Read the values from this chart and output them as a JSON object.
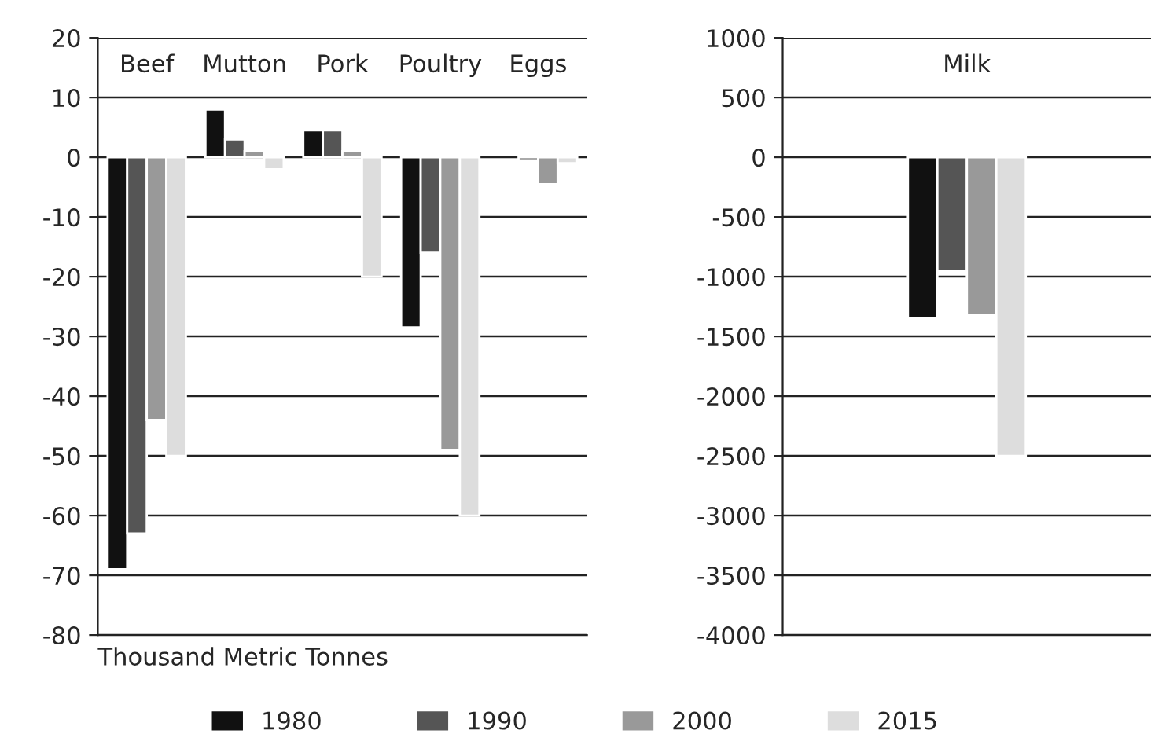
{
  "chart_data": [
    {
      "type": "bar",
      "categories": [
        "Beef",
        "Mutton",
        "Pork",
        "Poultry",
        "Eggs"
      ],
      "xlabel": "Thousand Metric Tonnes",
      "series": [
        {
          "name": "1980",
          "color": "#111111",
          "values": [
            -69,
            8,
            4.5,
            -28.5,
            null
          ]
        },
        {
          "name": "1990",
          "color": "#555555",
          "values": [
            -63,
            3,
            4.5,
            -16,
            -0.5
          ]
        },
        {
          "name": "2000",
          "color": "#999999",
          "values": [
            -44,
            1,
            1,
            -49,
            -4.5
          ]
        },
        {
          "name": "2015",
          "color": "#dddddd",
          "values": [
            -50,
            -2,
            -20,
            -60,
            -1
          ]
        }
      ],
      "ylim": [
        -80,
        20
      ],
      "yticks": [
        -80,
        -70,
        -60,
        -50,
        -40,
        -30,
        -20,
        -10,
        0,
        10,
        20
      ],
      "grid": "y",
      "legend": "bottom"
    },
    {
      "type": "bar",
      "categories": [
        "Milk"
      ],
      "series": [
        {
          "color": "#111111",
          "values": [
            -1350
          ]
        },
        {
          "color": "#555555",
          "values": [
            -950
          ]
        },
        {
          "color": "#999999",
          "values": [
            -1320
          ]
        },
        {
          "color": "#dddddd",
          "values": [
            -2500
          ]
        }
      ],
      "ylim": [
        -4000,
        1000
      ],
      "yticks": [
        -4000,
        -3500,
        -3000,
        -2500,
        -2000,
        -1500,
        -1000,
        -500,
        0,
        500,
        1000
      ],
      "grid": "y"
    }
  ]
}
